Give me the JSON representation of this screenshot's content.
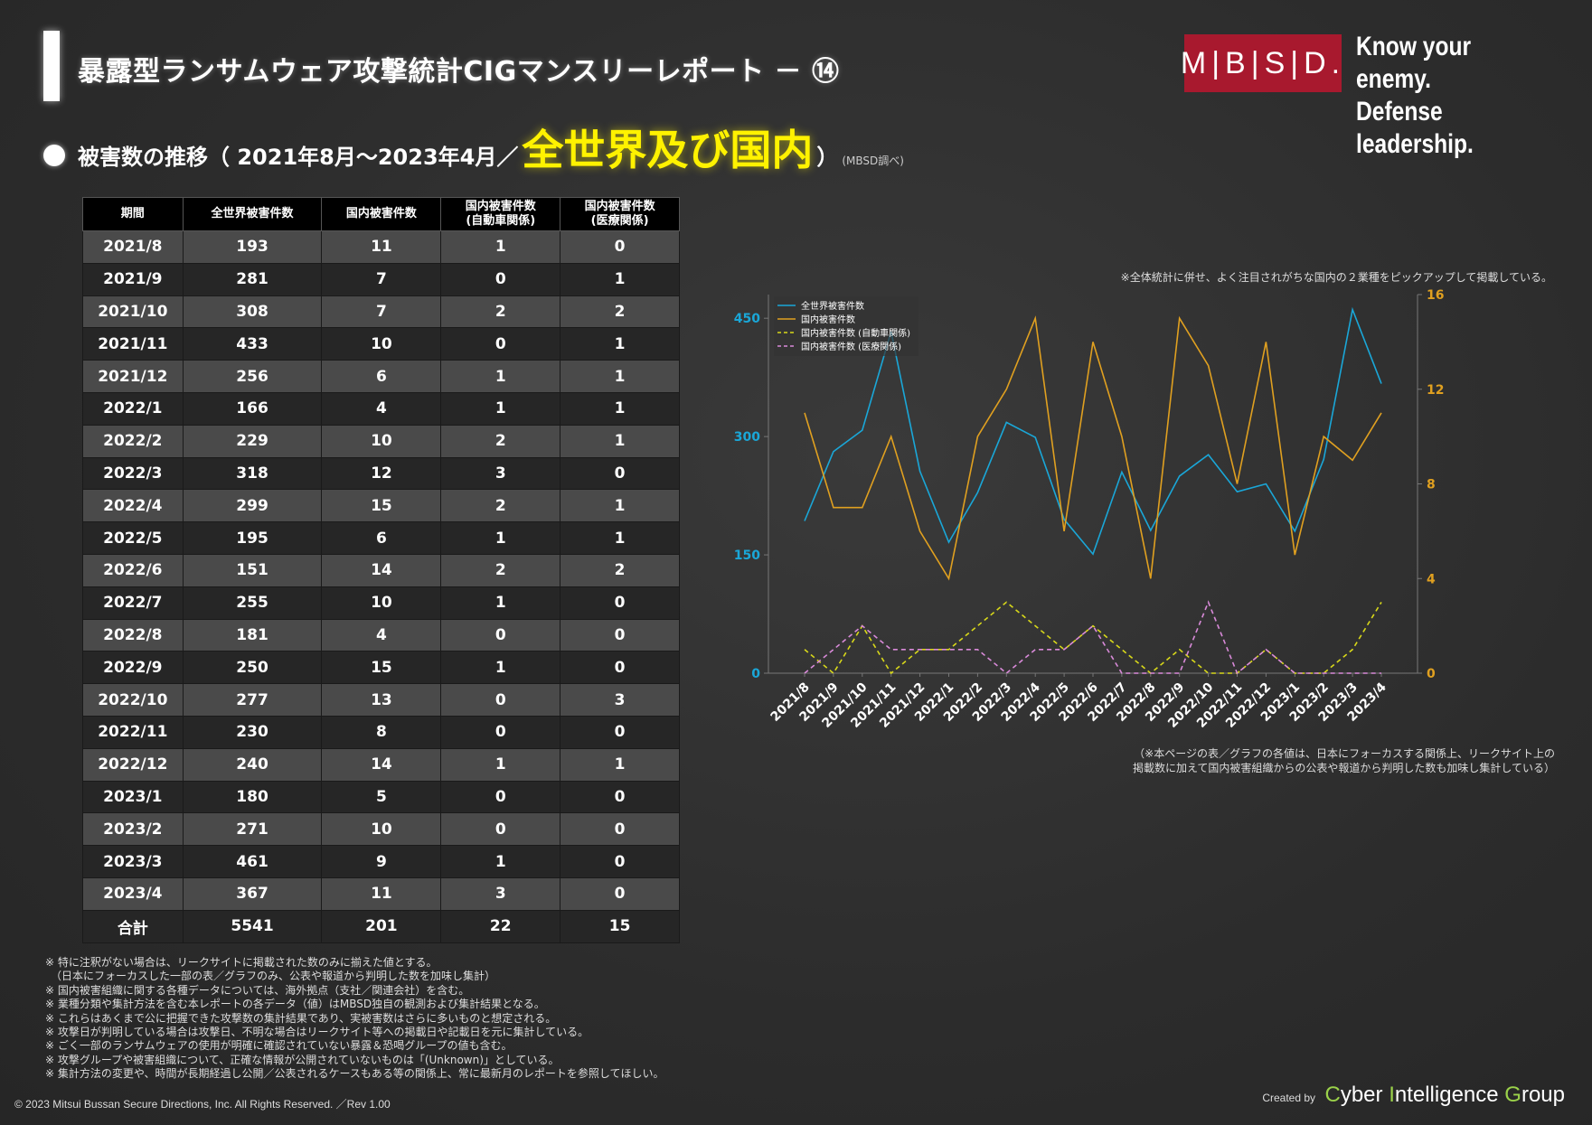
{
  "header": {
    "title": "暴露型ランサムウェア攻撃統計CIGマンスリーレポート － ⑭",
    "logo_mark": "M|B|S|D.",
    "logo_line1": "Know your enemy.",
    "logo_line2": "Defense leadership."
  },
  "subtitle": {
    "part1": "被害数の推移（ 2021年8月～2023年4月／",
    "highlight": "全世界及び国内",
    "part2": "）",
    "note": "(MBSD調べ)"
  },
  "table": {
    "headers": [
      "期間",
      "全世界被害件数",
      "国内被害件数",
      "国内被害件数\n(自動車関係)",
      "国内被害件数\n(医療関係)"
    ],
    "rows": [
      [
        "2021/8",
        "193",
        "11",
        "1",
        "0"
      ],
      [
        "2021/9",
        "281",
        "7",
        "0",
        "1"
      ],
      [
        "2021/10",
        "308",
        "7",
        "2",
        "2"
      ],
      [
        "2021/11",
        "433",
        "10",
        "0",
        "1"
      ],
      [
        "2021/12",
        "256",
        "6",
        "1",
        "1"
      ],
      [
        "2022/1",
        "166",
        "4",
        "1",
        "1"
      ],
      [
        "2022/2",
        "229",
        "10",
        "2",
        "1"
      ],
      [
        "2022/3",
        "318",
        "12",
        "3",
        "0"
      ],
      [
        "2022/4",
        "299",
        "15",
        "2",
        "1"
      ],
      [
        "2022/5",
        "195",
        "6",
        "1",
        "1"
      ],
      [
        "2022/6",
        "151",
        "14",
        "2",
        "2"
      ],
      [
        "2022/7",
        "255",
        "10",
        "1",
        "0"
      ],
      [
        "2022/8",
        "181",
        "4",
        "0",
        "0"
      ],
      [
        "2022/9",
        "250",
        "15",
        "1",
        "0"
      ],
      [
        "2022/10",
        "277",
        "13",
        "0",
        "3"
      ],
      [
        "2022/11",
        "230",
        "8",
        "0",
        "0"
      ],
      [
        "2022/12",
        "240",
        "14",
        "1",
        "1"
      ],
      [
        "2023/1",
        "180",
        "5",
        "0",
        "0"
      ],
      [
        "2023/2",
        "271",
        "10",
        "0",
        "0"
      ],
      [
        "2023/3",
        "461",
        "9",
        "1",
        "0"
      ],
      [
        "2023/4",
        "367",
        "11",
        "3",
        "0"
      ]
    ],
    "total": [
      "合計",
      "5541",
      "201",
      "22",
      "15"
    ]
  },
  "chart_note": "※全体統計に併せ、よく注目されがちな国内の２業種をピックアップして掲載している。",
  "chart_bottom_note": [
    "（※本ページの表／グラフの各値は、日本にフォーカスする関係上、リークサイト上の",
    "掲載数に加えて国内被害組織からの公表や報道から判明した数も加味し集計している）"
  ],
  "footnotes": [
    "※ 特に注釈がない場合は、リークサイトに掲載された数のみに揃えた値とする。",
    "　（日本にフォーカスした一部の表／グラフのみ、公表や報道から判明した数を加味し集計）",
    "※ 国内被害組織に関する各種データについては、海外拠点（支社／関連会社）を含む。",
    "※ 業種分類や集計方法を含む本レポートの各データ（値）はMBSD独自の観測および集計結果となる。",
    "※ これらはあくまで公に把握できた攻撃数の集計結果であり、実被害数はさらに多いものと想定される。",
    "※ 攻撃日が判明している場合は攻撃日、不明な場合はリークサイト等への掲載日や記載日を元に集計している。",
    "※ ごく一部のランサムウェアの使用が明確に確認されていない暴露＆恐喝グループの値も含む。",
    "※ 攻撃グループや被害組織について、正確な情報が公開されていないものは「(Unknown)」としている。",
    "※ 集計方法の変更や、時間が長期経過し公開／公表されるケースもある等の関係上、常に最新月のレポートを参照してほしい。"
  ],
  "footer": {
    "copyright": "© 2023 Mitsui Bussan Secure Directions, Inc.  All Rights Reserved. ／Rev 1.00",
    "created_by": "Created by",
    "cig_c": "C",
    "cig_1": "yber ",
    "cig_i": "I",
    "cig_2": "ntelligence ",
    "cig_g": "G",
    "cig_3": "roup"
  },
  "chart_data": {
    "type": "line",
    "categories": [
      "2021/8",
      "2021/9",
      "2021/10",
      "2021/11",
      "2021/12",
      "2022/1",
      "2022/2",
      "2022/3",
      "2022/4",
      "2022/5",
      "2022/6",
      "2022/7",
      "2022/8",
      "2022/9",
      "2022/10",
      "2022/11",
      "2022/12",
      "2023/1",
      "2023/2",
      "2023/3",
      "2023/4"
    ],
    "series": [
      {
        "name": "全世界被害件数",
        "axis": "left",
        "color": "#1aa7d8",
        "dash": false,
        "values": [
          193,
          281,
          308,
          433,
          256,
          166,
          229,
          318,
          299,
          195,
          151,
          255,
          181,
          250,
          277,
          230,
          240,
          180,
          271,
          461,
          367
        ]
      },
      {
        "name": "国内被害件数",
        "axis": "right",
        "color": "#e0a020",
        "dash": false,
        "values": [
          11,
          7,
          7,
          10,
          6,
          4,
          10,
          12,
          15,
          6,
          14,
          10,
          4,
          15,
          13,
          8,
          14,
          5,
          10,
          9,
          11
        ]
      },
      {
        "name": "国内被害件数 (自動車関係)",
        "axis": "right",
        "color": "#d8d81a",
        "dash": true,
        "values": [
          1,
          0,
          2,
          0,
          1,
          1,
          2,
          3,
          2,
          1,
          2,
          1,
          0,
          1,
          0,
          0,
          1,
          0,
          0,
          1,
          3
        ]
      },
      {
        "name": "国内被害件数 (医療関係)",
        "axis": "right",
        "color": "#d98ad9",
        "dash": true,
        "values": [
          0,
          1,
          2,
          1,
          1,
          1,
          1,
          0,
          1,
          1,
          2,
          0,
          0,
          0,
          3,
          0,
          1,
          0,
          0,
          0,
          0
        ]
      }
    ],
    "left_ylim": [
      0,
      480
    ],
    "left_ticks": [
      0,
      150,
      300,
      450
    ],
    "right_ylim": [
      0,
      16
    ],
    "right_ticks": [
      0,
      4,
      8,
      12,
      16
    ],
    "left_tick_color": "#1aa7d8",
    "right_tick_color": "#e0a020",
    "legend": "top-left"
  }
}
